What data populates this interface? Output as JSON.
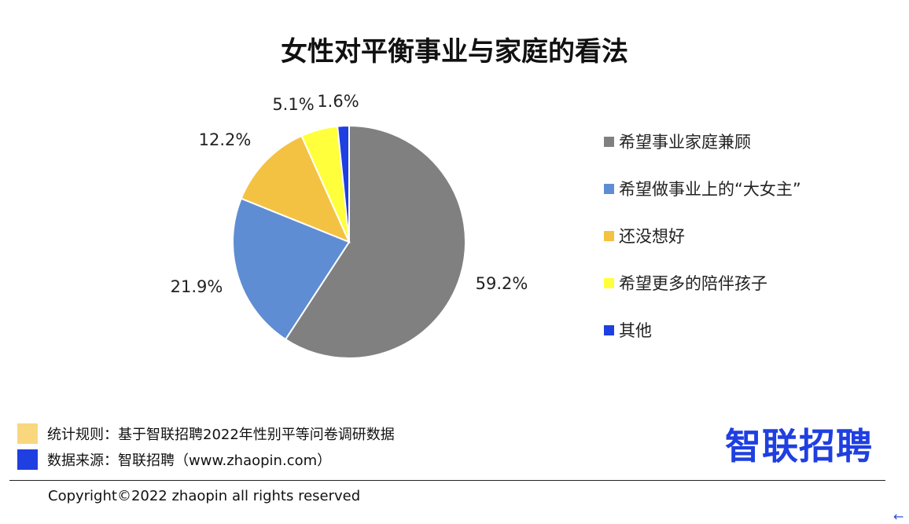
{
  "chart_data": {
    "type": "pie",
    "title": "女性对平衡事业与家庭的看法",
    "slices": [
      {
        "label": "希望事业家庭兼顾",
        "value": 59.2,
        "value_label": "59.2%",
        "color": "#808080"
      },
      {
        "label": "希望做事业上的“大女主”",
        "value": 21.9,
        "value_label": "21.9%",
        "color": "#5f8dd3"
      },
      {
        "label": "还没想好",
        "value": 12.2,
        "value_label": "12.2%",
        "color": "#f4c242"
      },
      {
        "label": "希望更多的陪伴孩子",
        "value": 5.1,
        "value_label": "5.1%",
        "color": "#ffff3c"
      },
      {
        "label": "其他",
        "value": 1.6,
        "value_label": "1.6%",
        "color": "#1f3fe0"
      }
    ],
    "legend_position": "right"
  },
  "footer": {
    "notes": [
      {
        "text": "统计规则：基于智联招聘2022年性别平等问卷调研数据",
        "color": "#f9d77e"
      },
      {
        "text": "数据来源：智联招聘（www.zhaopin.com）",
        "color": "#1f3fe0"
      }
    ],
    "logo": "智联招聘",
    "copyright": "Copyright©2022 zhaopin all rights reserved"
  },
  "colors": {
    "logo": "#1f3fe0"
  }
}
